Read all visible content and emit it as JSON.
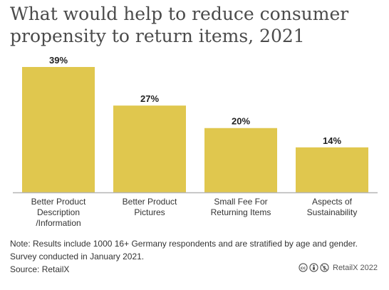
{
  "title": "What would help to reduce consumer propensity to return items, 2021",
  "note": {
    "line1": "Note: Results include 1000 16+ Germany respondents and are stratified by age and gender.",
    "line2": "Survey conducted in January 2021.",
    "source": "Source: RetailX"
  },
  "credit": {
    "text": "RetailX 2022",
    "icons": [
      "cc-icon",
      "attribution-icon",
      "non-commercial-icon"
    ]
  },
  "colors": {
    "bar": "#e0c74e",
    "axis": "#b5b5b5",
    "label": "#333333"
  },
  "chart_data": {
    "type": "bar",
    "categories": [
      [
        "Better Product",
        "Description",
        "/Information"
      ],
      [
        "Better Product",
        "Pictures"
      ],
      [
        "Small Fee For",
        "Returning Items"
      ],
      [
        "Aspects of",
        "Sustainability"
      ]
    ],
    "values": [
      39,
      27,
      20,
      14
    ],
    "value_labels": [
      "39%",
      "27%",
      "20%",
      "14%"
    ],
    "ylim": [
      0,
      40
    ],
    "grid": false,
    "legend": "none"
  }
}
